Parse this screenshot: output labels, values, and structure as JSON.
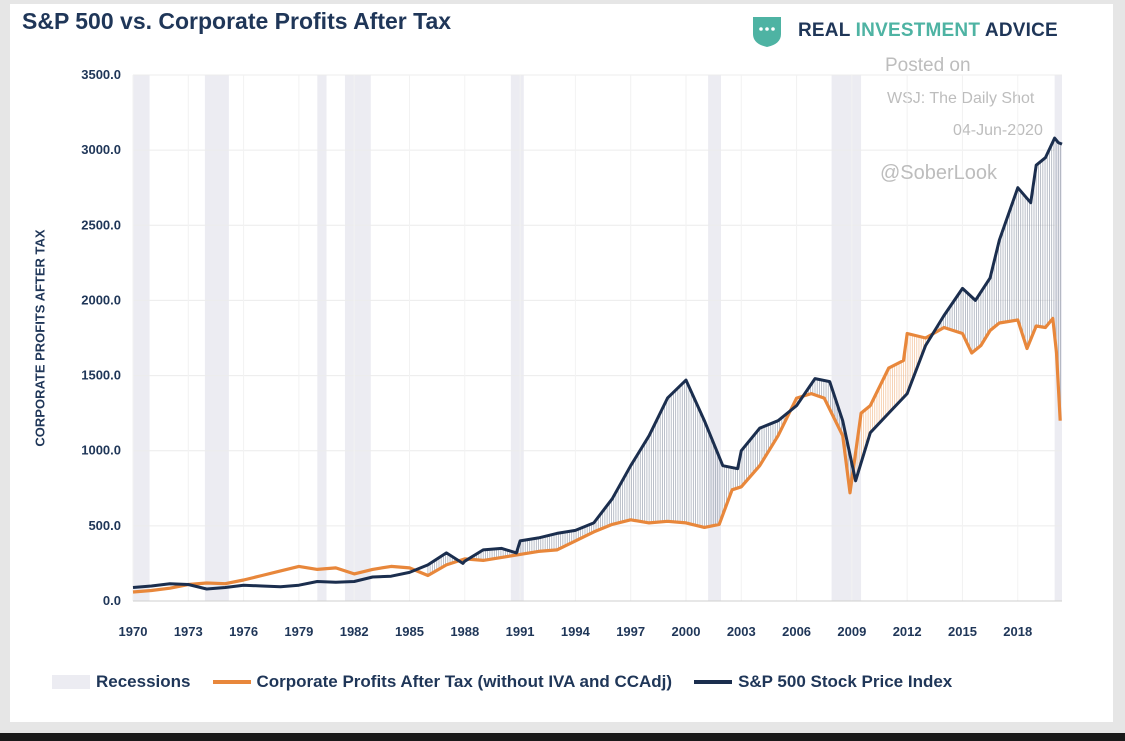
{
  "title": "S&P 500 vs. Corporate Profits After Tax",
  "brand": {
    "part1": "REAL ",
    "part2": "INVESTMENT",
    "part3": " ADVICE",
    "icon": "shield-icon",
    "accent": "#4eb3a3"
  },
  "watermark": {
    "line1": "Posted on",
    "line2": "WSJ: The Daily Shot",
    "line3": "04-Jun-2020",
    "line4": "@SoberLook"
  },
  "colors": {
    "profits": "#e8873b",
    "sp500": "#1b2e4e",
    "recession": "#ececf2",
    "text": "#1f3658"
  },
  "legend": {
    "recessions": "Recessions",
    "profits": "Corporate Profits After Tax (without IVA and CCAdj)",
    "sp500": "S&P 500 Stock Price Index"
  },
  "chart_data": {
    "type": "line",
    "title": "S&P 500 vs. Corporate Profits After Tax",
    "ylabel": "CORPORATE PROFITS AFTER TAX",
    "xlabel": "",
    "xlim": [
      1970,
      2020.4
    ],
    "ylim": [
      0,
      3500
    ],
    "y_ticks": [
      "0.0",
      "500.0",
      "1000.0",
      "1500.0",
      "2000.0",
      "2500.0",
      "3000.0",
      "3500.0"
    ],
    "x_ticks": [
      "1970",
      "1973",
      "1976",
      "1979",
      "1982",
      "1985",
      "1988",
      "1991",
      "1994",
      "1997",
      "2000",
      "2003",
      "2006",
      "2009",
      "2012",
      "2015",
      "2018"
    ],
    "grid": true,
    "legend_position": "bottom",
    "recessions": [
      [
        1969.9,
        1970.9
      ],
      [
        1973.9,
        1975.2
      ],
      [
        1980.0,
        1980.5
      ],
      [
        1981.5,
        1982.9
      ],
      [
        1990.5,
        1991.2
      ],
      [
        2001.2,
        2001.9
      ],
      [
        2007.9,
        2009.5
      ],
      [
        2020.0,
        2020.4
      ]
    ],
    "series": [
      {
        "name": "Corporate Profits After Tax (without IVA and CCAdj)",
        "x": [
          1970,
          1971,
          1972,
          1973,
          1974,
          1975,
          1976,
          1977,
          1978,
          1979,
          1980,
          1981,
          1982,
          1983,
          1984,
          1985,
          1986,
          1987,
          1988,
          1989,
          1990,
          1991,
          1992,
          1993,
          1994,
          1995,
          1996,
          1997,
          1998,
          1999,
          2000,
          2001,
          2001.8,
          2002.5,
          2003,
          2004,
          2005,
          2006,
          2006.8,
          2007.5,
          2008.5,
          2008.9,
          2009.5,
          2010,
          2011,
          2011.8,
          2012,
          2013,
          2014,
          2015,
          2015.5,
          2016,
          2016.5,
          2017,
          2018,
          2018.5,
          2019,
          2019.5,
          2019.9,
          2020.1,
          2020.3
        ],
        "values": [
          60,
          70,
          85,
          110,
          120,
          115,
          140,
          170,
          200,
          230,
          210,
          220,
          180,
          210,
          230,
          220,
          170,
          240,
          280,
          270,
          290,
          310,
          330,
          340,
          400,
          460,
          510,
          540,
          520,
          530,
          520,
          490,
          510,
          740,
          760,
          900,
          1100,
          1350,
          1380,
          1350,
          1100,
          720,
          1250,
          1300,
          1550,
          1600,
          1780,
          1750,
          1820,
          1780,
          1650,
          1700,
          1800,
          1850,
          1870,
          1680,
          1830,
          1820,
          1880,
          1650,
          1200
        ]
      },
      {
        "name": "S&P 500 Stock Price Index",
        "x": [
          1970,
          1971,
          1972,
          1973,
          1974,
          1975,
          1976,
          1977,
          1978,
          1979,
          1980,
          1981,
          1982,
          1983,
          1984,
          1985,
          1986,
          1987,
          1987.9,
          1988,
          1989,
          1990,
          1990.8,
          1991,
          1992,
          1993,
          1994,
          1995,
          1996,
          1997,
          1998,
          1999,
          2000,
          2001,
          2002,
          2002.8,
          2003,
          2004,
          2005,
          2006,
          2007,
          2007.8,
          2008.5,
          2009.2,
          2010,
          2011,
          2012,
          2013,
          2014,
          2015,
          2015.7,
          2016.5,
          2017,
          2018,
          2018.7,
          2019,
          2019.5,
          2020,
          2020.2,
          2020.4
        ],
        "values": [
          90,
          100,
          115,
          110,
          80,
          90,
          105,
          100,
          95,
          105,
          130,
          125,
          130,
          160,
          165,
          190,
          240,
          320,
          250,
          265,
          340,
          350,
          320,
          400,
          420,
          450,
          470,
          520,
          680,
          900,
          1100,
          1350,
          1470,
          1200,
          900,
          880,
          1000,
          1150,
          1200,
          1300,
          1480,
          1460,
          1200,
          800,
          1120,
          1250,
          1380,
          1700,
          1900,
          2080,
          2000,
          2150,
          2400,
          2750,
          2650,
          2900,
          2950,
          3080,
          3050,
          3040
        ]
      }
    ]
  }
}
